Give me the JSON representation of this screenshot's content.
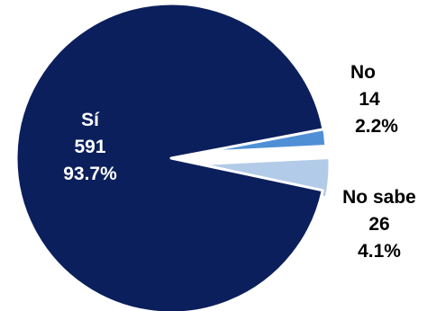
{
  "chart_data": {
    "type": "pie",
    "title": "",
    "categories": [
      "Sí",
      "No",
      "No sabe"
    ],
    "values": [
      591,
      14,
      26
    ],
    "percent_labels": [
      "93.7%",
      "2.2%",
      "4.1%"
    ],
    "value_labels": [
      "591",
      "14",
      "26"
    ],
    "colors": [
      "#0b1f5c",
      "#4f8fd6",
      "#b2cbe8"
    ],
    "label_colors": [
      "#ffffff",
      "#000000",
      "#000000"
    ],
    "exploded": [
      "No",
      "No sabe"
    ],
    "legend": "none"
  }
}
